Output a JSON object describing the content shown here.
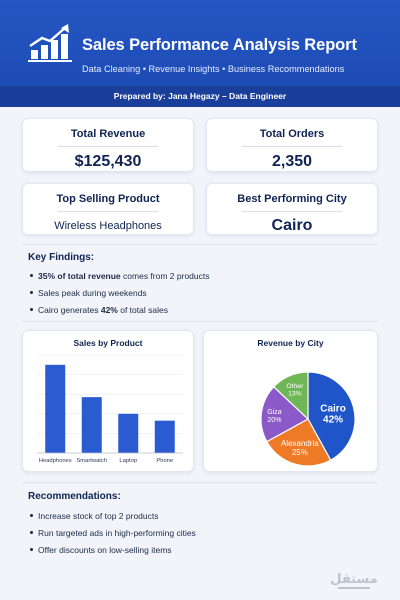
{
  "header": {
    "title": "Sales Performance Analysis Report",
    "subtitle": "Data Cleaning • Revenue Insights • Business Recommendations",
    "prepared_by": "Prepared by: Jana Hegazy – Data Engineer"
  },
  "kpis": {
    "total_revenue": {
      "label": "Total Revenue",
      "value": "$125,430"
    },
    "total_orders": {
      "label": "Total Orders",
      "value": "2,350"
    },
    "top_product": {
      "label": "Top Selling Product",
      "value": "Wireless Headphones"
    },
    "best_city": {
      "label": "Best Performing City",
      "value": "Cairo"
    }
  },
  "findings": {
    "title": "Key Findings:",
    "items": [
      {
        "strong": "35% of total revenue",
        "rest": " comes from 2 products"
      },
      {
        "text": "Sales peak during weekends"
      },
      {
        "pre": "Cairo generates ",
        "strong": "42%",
        "post": " of total sales"
      }
    ]
  },
  "recommendations": {
    "title": "Recommendations:",
    "items": [
      "Increase stock of top 2 products",
      "Run targeted ads in high-performing cities",
      "Offer discounts on low-selling items"
    ]
  },
  "chart_data": [
    {
      "type": "bar",
      "title": "Sales by Product",
      "categories": [
        "Headphones",
        "Smartwatch",
        "Laptop",
        "Phone"
      ],
      "values": [
        90,
        57,
        40,
        33
      ],
      "ylim": [
        0,
        100
      ],
      "grid": true,
      "color": "#2a5bd0"
    },
    {
      "type": "pie",
      "title": "Revenue by City",
      "labels": [
        "Cairo",
        "Alexandria",
        "Giza",
        "Other"
      ],
      "values": [
        42,
        25,
        20,
        13
      ],
      "colors": [
        "#1f55c8",
        "#ef7a25",
        "#8b5ac8",
        "#6fb656"
      ]
    }
  ],
  "watermark": "مستقل"
}
